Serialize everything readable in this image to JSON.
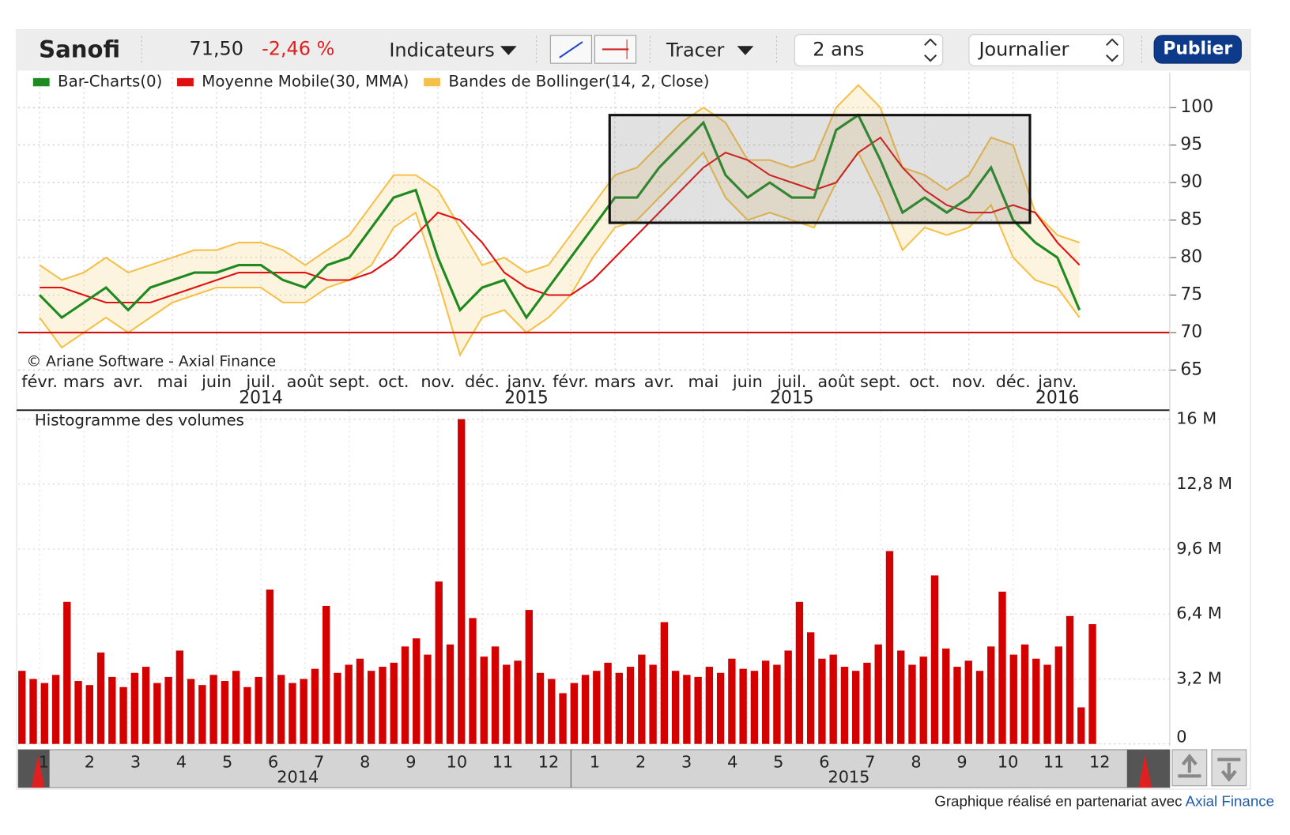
{
  "toolbar": {
    "name": "Sanofi",
    "price": "71,50",
    "change": "-2,46 %",
    "indicators": "Indicateurs",
    "draw": "Tracer",
    "period": "2 ans",
    "interval": "Journalier",
    "publish": "Publier"
  },
  "chart_data": [
    {
      "type": "price",
      "annotation": "© Ariane Software - Axial Finance",
      "categories": [
        "févr.",
        null,
        "mars",
        null,
        "avr.",
        null,
        "mai",
        null,
        "juin",
        null,
        "juil.",
        null,
        "août",
        null,
        "sept.",
        null,
        "oct.",
        null,
        "nov.",
        null,
        "déc.",
        null,
        "janv.",
        null,
        "févr.",
        null,
        "mars",
        null,
        "avr.",
        null,
        "mai",
        null,
        "juin",
        null,
        "juil.",
        null,
        "août",
        null,
        "sept.",
        null,
        "oct.",
        null,
        "nov.",
        null,
        "déc.",
        null,
        "janv.",
        null
      ],
      "x_years": [
        null,
        null,
        null,
        null,
        null,
        null,
        null,
        null,
        null,
        null,
        "2014",
        null,
        null,
        null,
        null,
        null,
        null,
        null,
        null,
        null,
        null,
        null,
        "2015",
        null,
        null,
        null,
        null,
        null,
        null,
        null,
        null,
        null,
        null,
        null,
        "2015",
        null,
        null,
        null,
        null,
        null,
        null,
        null,
        null,
        null,
        null,
        null,
        "2016",
        null
      ],
      "series": [
        {
          "name": "Bar-Charts(0)",
          "color": "#1f8a1f",
          "values": [
            75,
            72,
            74,
            76,
            73,
            76,
            77,
            78,
            78,
            79,
            79,
            77,
            76,
            79,
            80,
            84,
            88,
            89,
            80,
            73,
            76,
            77,
            72,
            76,
            80,
            84,
            88,
            88,
            92,
            95,
            98,
            91,
            88,
            90,
            88,
            88,
            97,
            99,
            93,
            86,
            88,
            86,
            88,
            92,
            85,
            82,
            80,
            73
          ]
        },
        {
          "name": "Moyenne Mobile(30, MMA)",
          "color": "#e01010",
          "values": [
            76,
            76,
            75,
            74,
            74,
            74,
            75,
            76,
            77,
            78,
            78,
            78,
            78,
            77,
            77,
            78,
            80,
            83,
            86,
            85,
            82,
            78,
            76,
            75,
            75,
            77,
            80,
            83,
            86,
            89,
            92,
            94,
            93,
            91,
            90,
            89,
            90,
            94,
            96,
            92,
            89,
            87,
            86,
            86,
            87,
            86,
            82,
            79
          ]
        },
        {
          "name": "Bandes de Bollinger(14, 2, Close)",
          "color": "#f5c04a",
          "upper": [
            79,
            77,
            78,
            80,
            78,
            79,
            80,
            81,
            81,
            82,
            82,
            81,
            79,
            81,
            83,
            87,
            91,
            91,
            89,
            84,
            79,
            80,
            78,
            79,
            83,
            87,
            91,
            92,
            95,
            98,
            100,
            98,
            93,
            93,
            92,
            93,
            100,
            103,
            100,
            92,
            91,
            89,
            91,
            96,
            95,
            86,
            83,
            82
          ],
          "lower": [
            72,
            68,
            70,
            72,
            70,
            72,
            74,
            75,
            76,
            76,
            76,
            74,
            74,
            76,
            77,
            79,
            84,
            86,
            77,
            67,
            72,
            73,
            70,
            72,
            75,
            80,
            84,
            85,
            88,
            91,
            94,
            88,
            85,
            86,
            85,
            84,
            90,
            94,
            88,
            81,
            84,
            83,
            84,
            87,
            80,
            77,
            76,
            72
          ]
        }
      ],
      "reference_line": {
        "value": 70,
        "color": "#cc1111"
      },
      "ylim": [
        64.8,
        104.7
      ],
      "yticks": [
        65,
        70,
        75,
        80,
        85,
        90,
        95,
        100
      ],
      "grid": true
    },
    {
      "type": "bar",
      "title": "Histogramme des volumes",
      "color": "#d40000",
      "values": [
        3.6,
        3.2,
        3.0,
        3.4,
        7.0,
        3.1,
        2.9,
        4.5,
        3.3,
        2.8,
        3.5,
        3.8,
        3.0,
        3.3,
        4.6,
        3.2,
        2.9,
        3.4,
        3.1,
        3.6,
        2.8,
        3.3,
        7.6,
        3.4,
        3.0,
        3.2,
        3.7,
        6.8,
        3.5,
        3.9,
        4.2,
        3.6,
        3.8,
        4.0,
        4.8,
        5.2,
        4.4,
        8.0,
        4.9,
        16.0,
        6.2,
        4.3,
        4.8,
        3.9,
        4.1,
        6.6,
        3.5,
        3.2,
        2.5,
        3.0,
        3.4,
        3.6,
        4.0,
        3.5,
        3.8,
        4.4,
        3.9,
        6.0,
        3.6,
        3.4,
        3.3,
        3.8,
        3.5,
        4.2,
        3.7,
        3.6,
        4.1,
        3.9,
        4.6,
        7.0,
        5.5,
        4.2,
        4.4,
        3.8,
        3.6,
        4.0,
        4.9,
        9.5,
        4.6,
        3.9,
        4.3,
        8.3,
        4.7,
        3.8,
        4.1,
        3.6,
        4.8,
        7.5,
        4.4,
        4.9,
        4.2,
        3.9,
        4.8,
        6.3,
        1.8,
        5.9
      ],
      "ylim": [
        0,
        16.4
      ],
      "yticks": [
        0,
        {
          "value": 3.2,
          "label": "3,2 M"
        },
        {
          "value": 6.4,
          "label": "6,4 M"
        },
        {
          "value": 9.6,
          "label": "9,6 M"
        },
        {
          "value": 12.8,
          "label": "12,8 M"
        },
        {
          "value": 16,
          "label": "16 M"
        }
      ],
      "grid": true
    }
  ],
  "navigator": {
    "years": [
      {
        "label": "2014",
        "months": [
          "1",
          "2",
          "3",
          "4",
          "5",
          "6",
          "7",
          "8",
          "9",
          "10",
          "11",
          "12"
        ]
      },
      {
        "label": "2015",
        "months": [
          "1",
          "2",
          "3",
          "4",
          "5",
          "6",
          "7",
          "8",
          "9",
          "10",
          "11",
          "12"
        ]
      }
    ]
  },
  "footer": {
    "text": "Graphique réalisé en partenariat avec",
    "link": "Axial Finance"
  }
}
